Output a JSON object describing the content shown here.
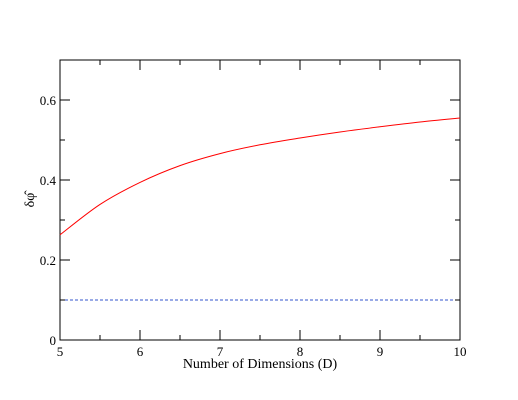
{
  "chart_data": {
    "type": "line",
    "xlabel": "Number of Dimensions (D)",
    "ylabel": "δφ̂",
    "xlim": [
      5,
      10
    ],
    "ylim": [
      0,
      0.7
    ],
    "x_ticks": [
      5,
      6,
      7,
      8,
      9,
      10
    ],
    "y_ticks": [
      0,
      0.2,
      0.4,
      0.6
    ],
    "x_tick_labels": [
      "5",
      "6",
      "7",
      "8",
      "9",
      "10"
    ],
    "y_tick_labels": [
      "0",
      "0.2",
      "0.4",
      "0.6"
    ],
    "grid": false,
    "series": [
      {
        "color": "#ff0000",
        "style": "solid",
        "x": [
          5,
          5.5,
          6,
          6.5,
          7,
          7.5,
          8,
          8.5,
          9,
          9.5,
          10
        ],
        "y": [
          0.263,
          0.339,
          0.394,
          0.436,
          0.466,
          0.488,
          0.505,
          0.52,
          0.533,
          0.545,
          0.555
        ]
      },
      {
        "color": "#3355cc",
        "style": "dashed",
        "x": [
          5,
          10
        ],
        "y": [
          0.1,
          0.1
        ]
      }
    ]
  }
}
